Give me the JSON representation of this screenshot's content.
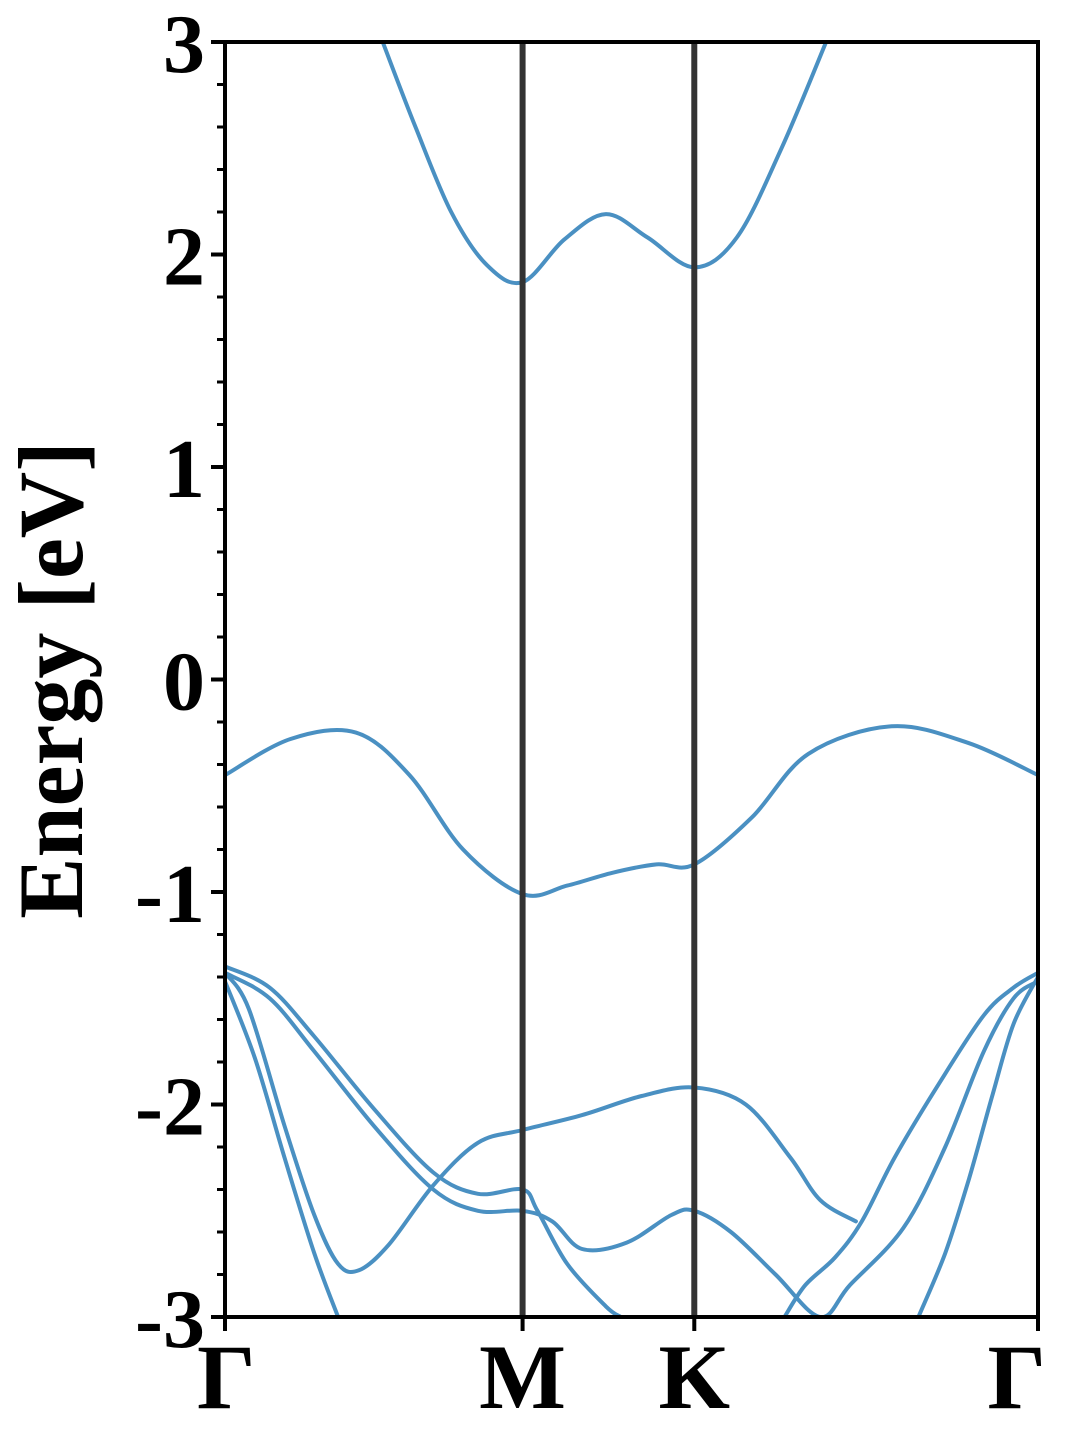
{
  "chart_data": {
    "type": "line",
    "title": "",
    "xlabel": "",
    "ylabel": "Energy [eV]",
    "ylim": [
      -3,
      3
    ],
    "y_ticks": [
      "-3",
      "-2",
      "-1",
      "0",
      "1",
      "2",
      "3"
    ],
    "x_ticks": [
      {
        "label": "Γ",
        "x": 0
      },
      {
        "label": "M",
        "x": 1
      },
      {
        "label": "K",
        "x": 1.577
      },
      {
        "label": "Γ",
        "x": 2.732
      }
    ],
    "xlim": [
      0,
      2.732
    ],
    "grid": false,
    "legend": "none",
    "colors": {
      "band": "#4a90c2",
      "high_symmetry_line": "#333333",
      "axis": "#000000"
    },
    "series": [
      {
        "x": [
          0.53,
          0.64,
          0.76,
          0.88,
          1.0,
          1.14,
          1.28,
          1.42,
          1.577,
          1.72,
          1.87,
          2.02
        ],
        "y": [
          3.0,
          2.6,
          2.2,
          1.95,
          1.87,
          2.07,
          2.19,
          2.08,
          1.94,
          2.08,
          2.5,
          3.0
        ]
      },
      {
        "x": [
          0.0,
          0.22,
          0.44,
          0.62,
          0.8,
          1.0,
          1.15,
          1.3,
          1.45,
          1.577,
          1.77,
          1.96,
          2.24,
          2.5,
          2.732
        ],
        "y": [
          -0.45,
          -0.28,
          -0.25,
          -0.45,
          -0.8,
          -1.01,
          -0.97,
          -0.91,
          -0.87,
          -0.87,
          -0.65,
          -0.35,
          -0.22,
          -0.3,
          -0.45
        ]
      },
      {
        "x": [
          0.0,
          0.15,
          0.3,
          0.5,
          0.7,
          0.85,
          1.0,
          1.1,
          1.2,
          1.35,
          1.5,
          1.577,
          1.7,
          1.85,
          2.0,
          2.1,
          2.28,
          2.42,
          2.55,
          2.65,
          2.732
        ],
        "y": [
          -1.38,
          -1.5,
          -1.75,
          -2.1,
          -2.4,
          -2.5,
          -2.5,
          -2.55,
          -2.68,
          -2.65,
          -2.52,
          -2.5,
          -2.6,
          -2.8,
          -3.0,
          -2.85,
          -2.58,
          -2.2,
          -1.75,
          -1.5,
          -1.42
        ]
      },
      {
        "x": [
          0.0,
          0.15,
          0.3,
          0.5,
          0.7,
          0.85,
          1.0,
          1.05,
          1.15,
          1.28,
          1.33
        ],
        "y": [
          -1.35,
          -1.45,
          -1.68,
          -2.02,
          -2.32,
          -2.42,
          -2.4,
          -2.5,
          -2.75,
          -2.95,
          -3.0
        ]
      },
      {
        "x": [
          0.0,
          0.08,
          0.2,
          0.3,
          0.38,
          0.45,
          0.55,
          0.7,
          0.85,
          1.0,
          1.2,
          1.4,
          1.577,
          1.75,
          1.9,
          2.0,
          2.12
        ],
        "y": [
          -1.38,
          -1.55,
          -2.1,
          -2.52,
          -2.75,
          -2.78,
          -2.66,
          -2.38,
          -2.18,
          -2.12,
          -2.05,
          -1.96,
          -1.92,
          -2.0,
          -2.25,
          -2.45,
          -2.55
        ]
      },
      {
        "x": [
          0.0,
          0.1,
          0.2,
          0.3,
          0.38
        ],
        "y": [
          -1.42,
          -1.78,
          -2.25,
          -2.7,
          -3.0
        ]
      },
      {
        "x": [
          1.88,
          1.95,
          2.05,
          2.14,
          2.25,
          2.4,
          2.55,
          2.65,
          2.732
        ],
        "y": [
          -3.0,
          -2.85,
          -2.72,
          -2.55,
          -2.25,
          -1.9,
          -1.58,
          -1.45,
          -1.38
        ]
      },
      {
        "x": [
          2.33,
          2.42,
          2.5,
          2.58,
          2.65,
          2.732
        ],
        "y": [
          -3.0,
          -2.7,
          -2.35,
          -1.95,
          -1.62,
          -1.4
        ]
      }
    ]
  }
}
